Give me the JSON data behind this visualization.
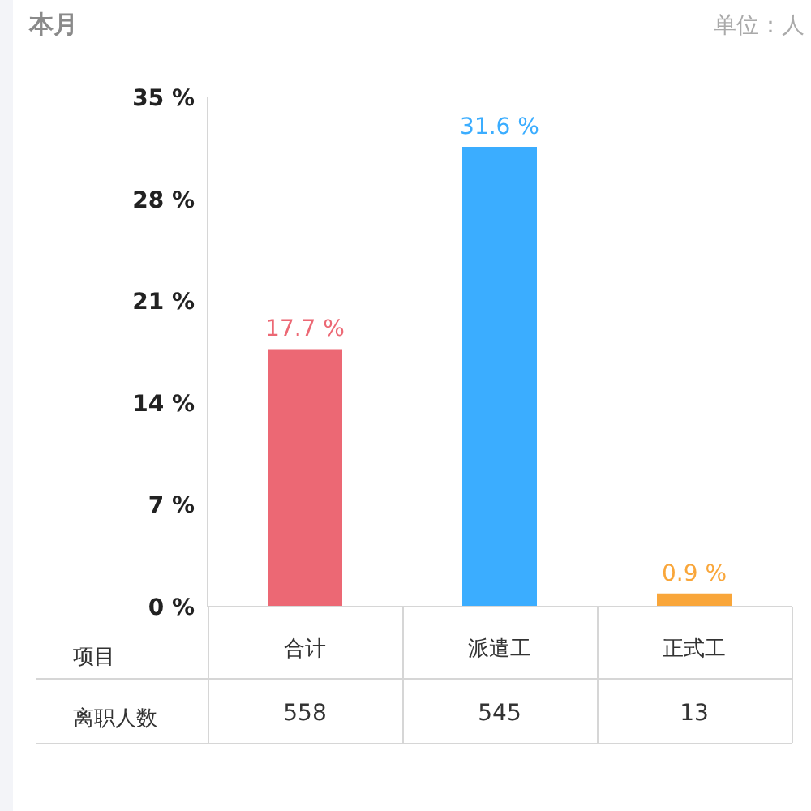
{
  "chart_data": {
    "type": "bar",
    "title": "本月",
    "annotations": [
      "单位：人",
      "项目",
      "离职人数",
      "558",
      "545",
      "13"
    ],
    "categories": [
      "合计",
      "派遣工",
      "正式工"
    ],
    "values": [
      17.7,
      31.6,
      0.9
    ],
    "colors": [
      "#ec6874",
      "#3badff",
      "#f9a63a"
    ],
    "value_labels": [
      "17.7 %",
      "31.6 %",
      "0.9 %"
    ],
    "ylim": [
      0,
      35
    ],
    "yticks": [
      {
        "value": 0,
        "label": "0 %"
      },
      {
        "value": 7,
        "label": "7 %"
      },
      {
        "value": 14,
        "label": "14 %"
      },
      {
        "value": 21,
        "label": "21 %"
      },
      {
        "value": 28,
        "label": "28 %"
      },
      {
        "value": 35,
        "label": "35 %"
      }
    ],
    "grid": false,
    "legend": false
  }
}
